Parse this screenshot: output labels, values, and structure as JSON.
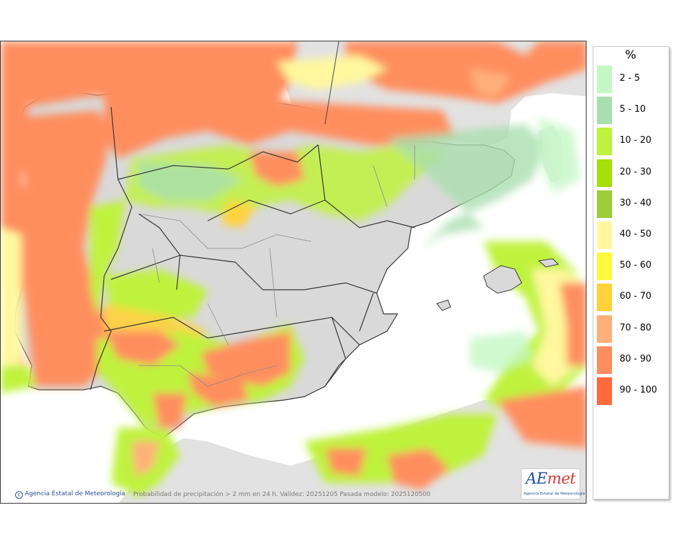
{
  "map": {
    "credit": "Agencia Estatal de Meteorología",
    "caption": "Probabilidad de precipitación > 2 mm en 24 h. Validez: 20251205 Pasada modelo: 2025120500",
    "logo_text_a": "AE",
    "logo_text_m": "met",
    "logo_subtitle": "Agencia Estatal de Meteorología"
  },
  "legend": {
    "title": "%",
    "items": [
      {
        "label": "2 - 5",
        "color": "#c4f7c4"
      },
      {
        "label": "5 - 10",
        "color": "#a9dfaf"
      },
      {
        "label": "10 - 20",
        "color": "#bff23c"
      },
      {
        "label": "20 - 30",
        "color": "#a6e00c"
      },
      {
        "label": "30 - 40",
        "color": "#9ccd3a"
      },
      {
        "label": "40 - 50",
        "color": "#fff89e"
      },
      {
        "label": "50 - 60",
        "color": "#fff83c"
      },
      {
        "label": "60 - 70",
        "color": "#ffd23c"
      },
      {
        "label": "70 - 80",
        "color": "#ffb07a"
      },
      {
        "label": "80 - 90",
        "color": "#ff8e5e"
      },
      {
        "label": "90 - 100",
        "color": "#ff6a3c"
      }
    ]
  },
  "colors": {
    "sea": "#ffffff",
    "land": "#e0e0e0",
    "border": "#303030"
  }
}
